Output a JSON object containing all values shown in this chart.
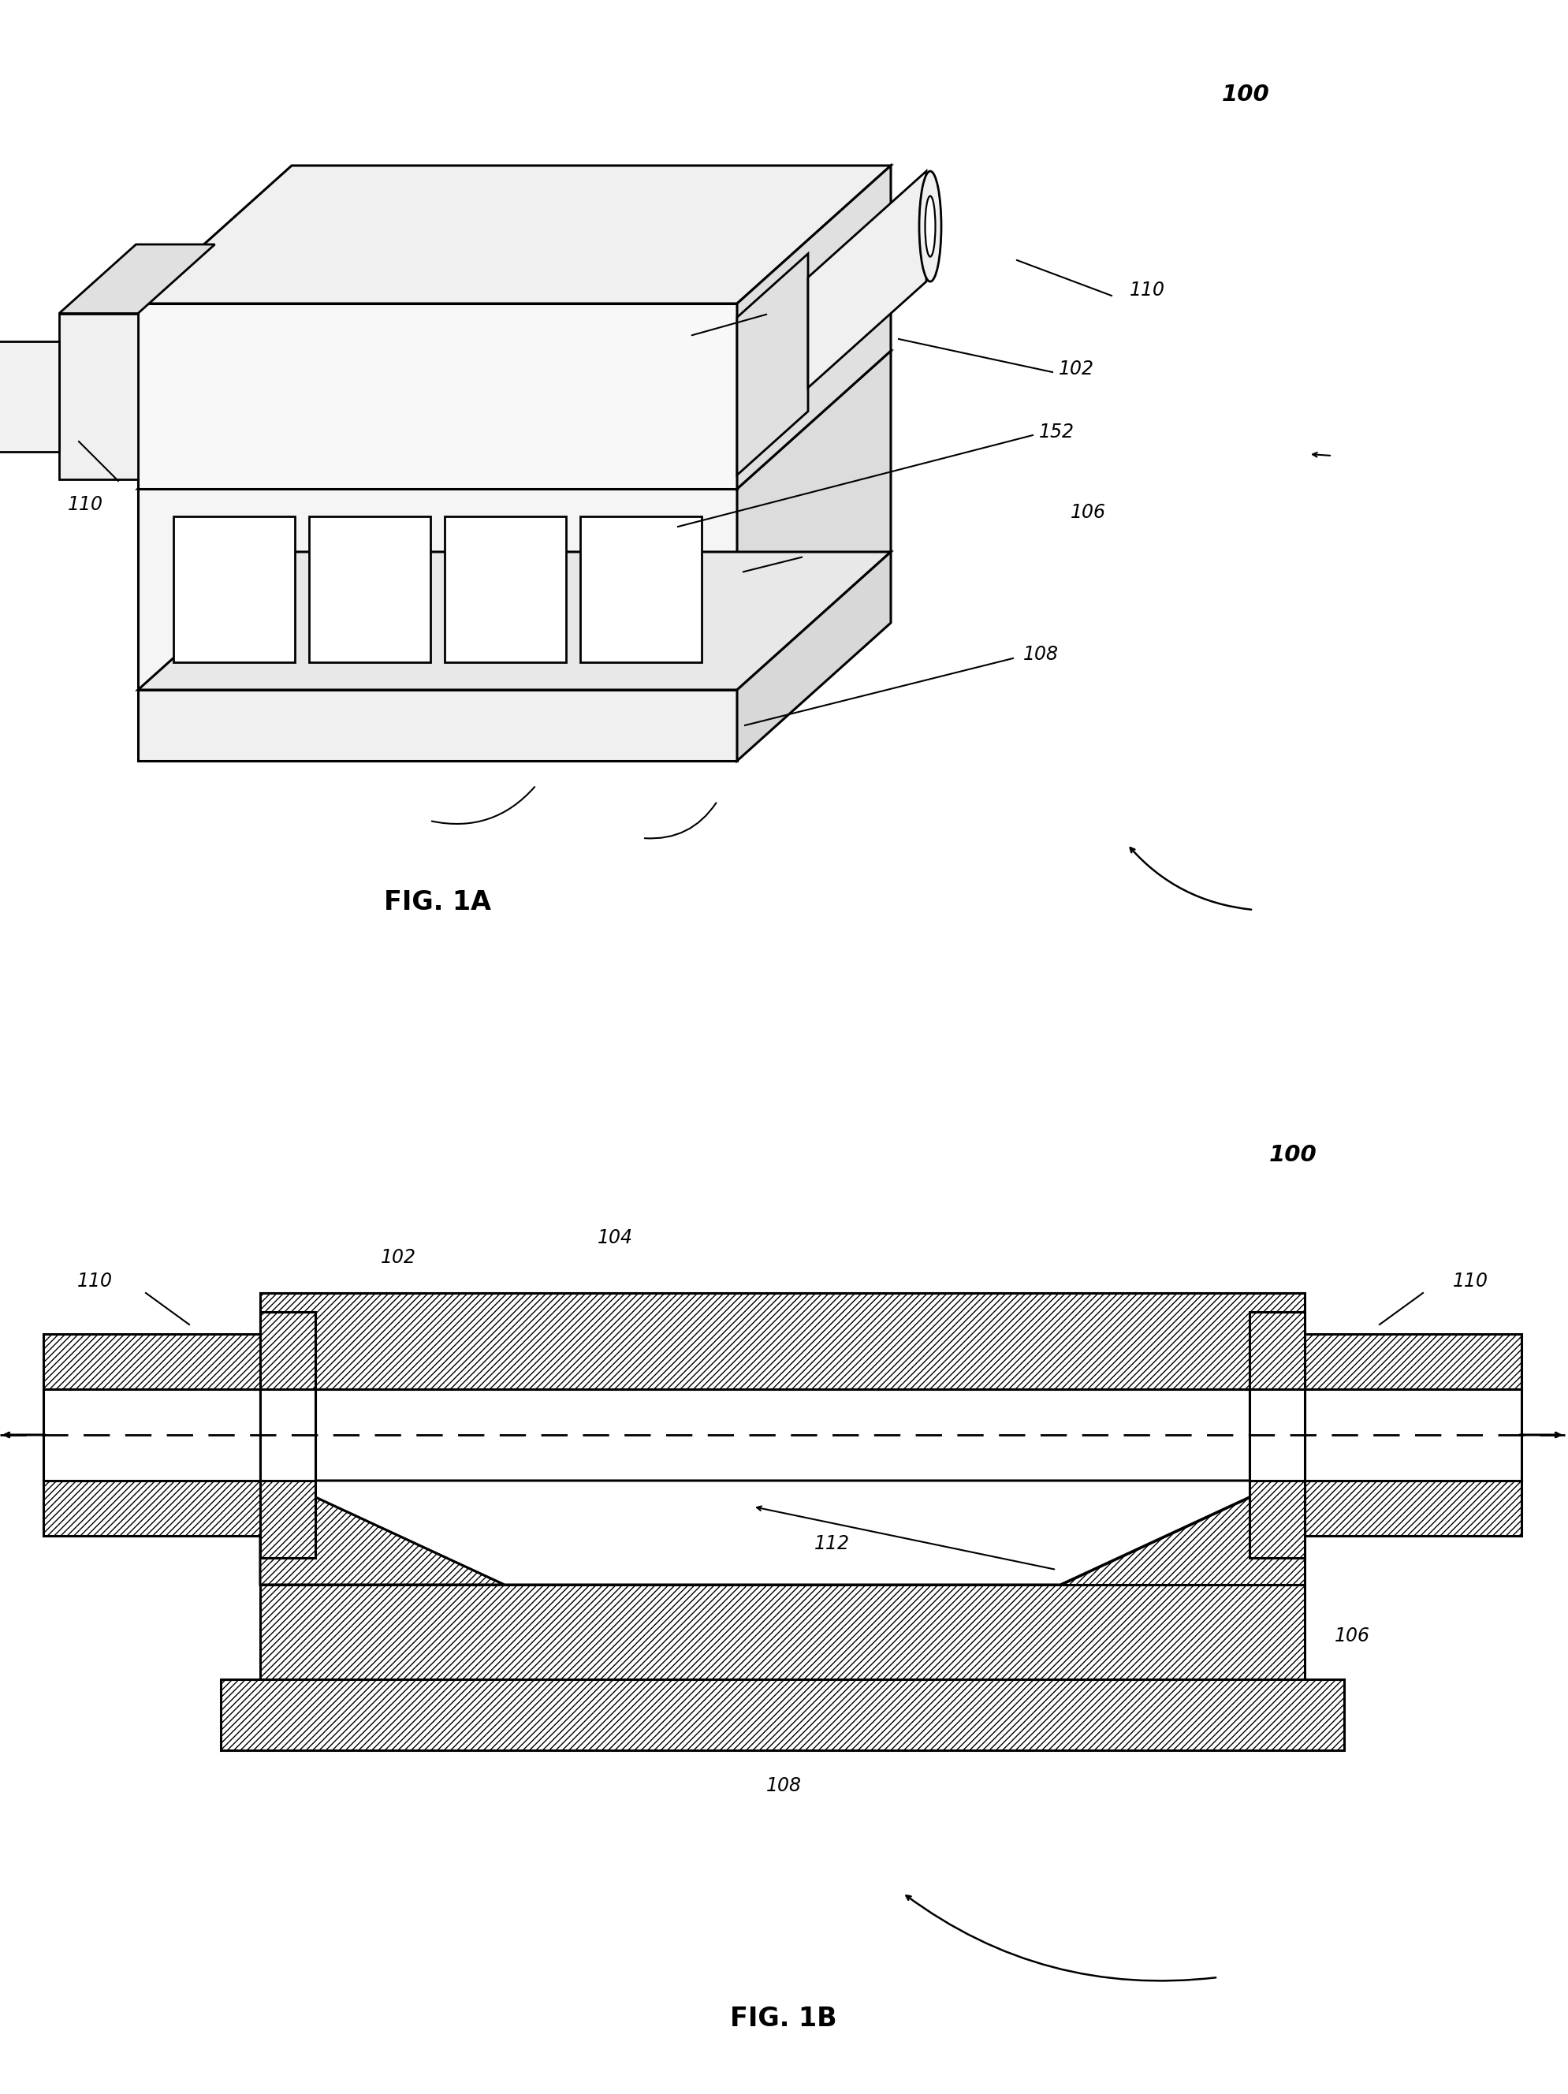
{
  "fig_width": 19.89,
  "fig_height": 26.56,
  "background_color": "#ffffff",
  "line_color": "#000000",
  "label_fontsize": 17,
  "caption_fontsize": 24,
  "fig1a_caption": "FIG. 1A",
  "fig1b_caption": "FIG. 1B",
  "labels": {
    "100a": "100",
    "110a_right": "110",
    "110a_left": "110",
    "102a": "102",
    "152a": "152",
    "106a": "106",
    "108a": "108",
    "100b": "100",
    "110b_left": "110",
    "110b_right": "110",
    "102b": "102",
    "104b": "104",
    "112b": "112",
    "106b": "106",
    "108b": "108"
  }
}
